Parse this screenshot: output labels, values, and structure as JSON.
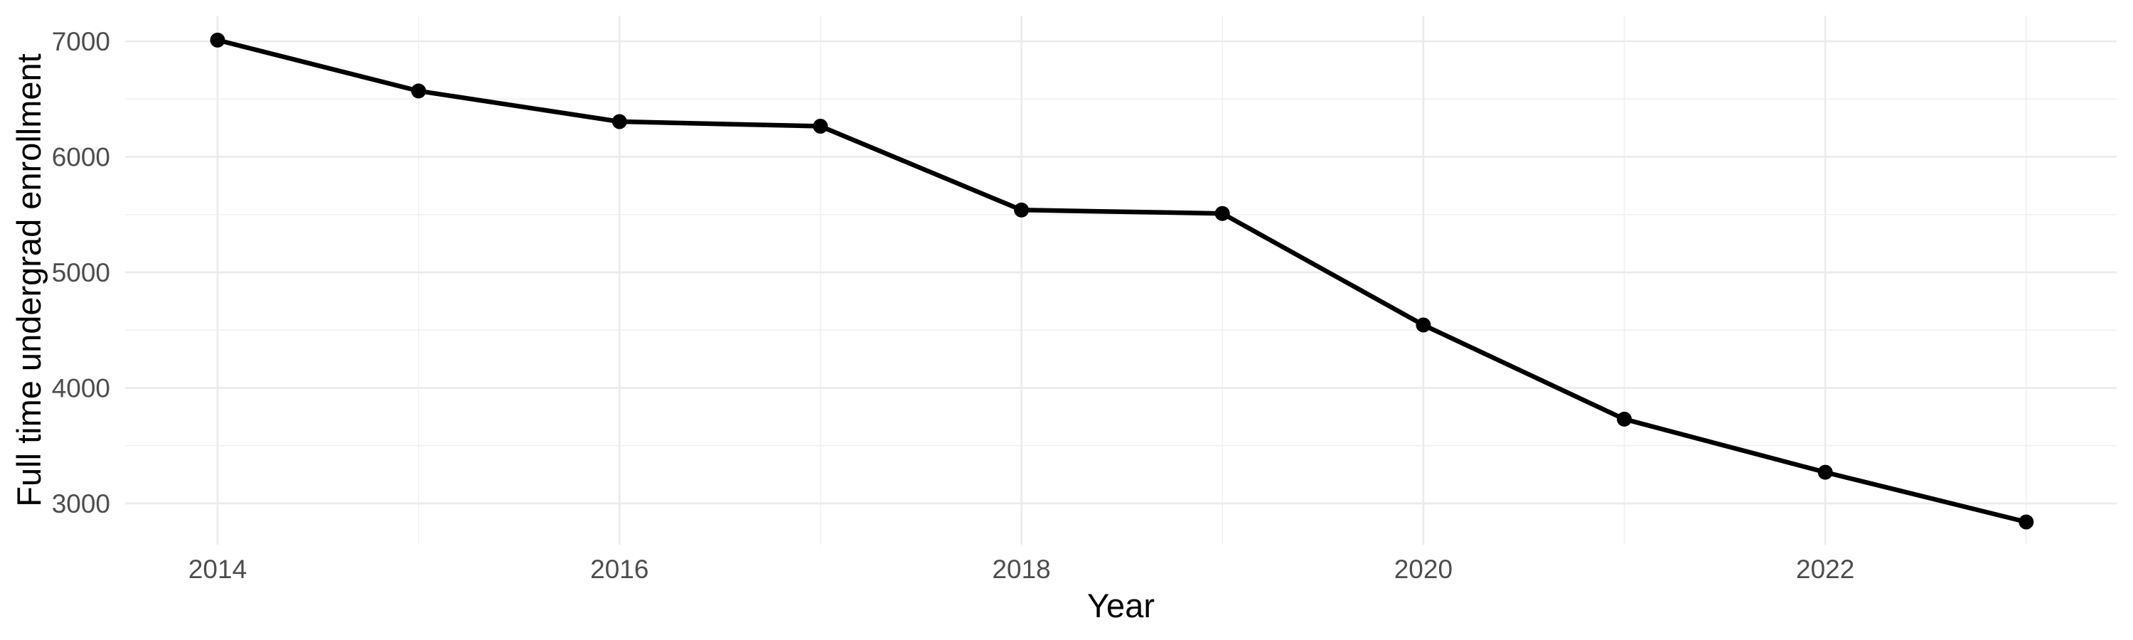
{
  "figure": {
    "background": "#FFFFFF"
  },
  "chart_data": {
    "type": "line",
    "title": "",
    "xlabel": "Year",
    "ylabel": "Full time undergrad enrollment",
    "x": [
      2014,
      2015,
      2016,
      2017,
      2018,
      2019,
      2020,
      2021,
      2022,
      2023
    ],
    "series": [
      {
        "name": "Full time undergrad enrollment",
        "values": [
          7010,
          6570,
          6305,
          6265,
          5540,
          5510,
          4545,
          3730,
          3270,
          2840
        ]
      }
    ],
    "xlim": [
      2013.54,
      2023.45
    ],
    "ylim": [
      2643,
      7222
    ],
    "x_major_ticks": [
      2014,
      2016,
      2018,
      2020,
      2022
    ],
    "x_minor_ticks": [
      2015,
      2017,
      2019,
      2021,
      2023
    ],
    "y_major_ticks": [
      3000,
      4000,
      5000,
      6000,
      7000
    ],
    "y_minor_ticks": [
      3500,
      4500,
      5500,
      6500
    ],
    "grid": "on",
    "legend": "none",
    "colors": {
      "line": "#000000",
      "point": "#000000",
      "grid_major": "#EBEBEB",
      "grid_minor": "#EFEFEF",
      "tick_label": "#4D4D4D",
      "axis_title": "#000000",
      "background": "#FFFFFF"
    },
    "style": {
      "line_width": 6.5,
      "point_radius": 10.5,
      "grid_major_width": 2.7,
      "grid_minor_width": 1.5
    }
  }
}
